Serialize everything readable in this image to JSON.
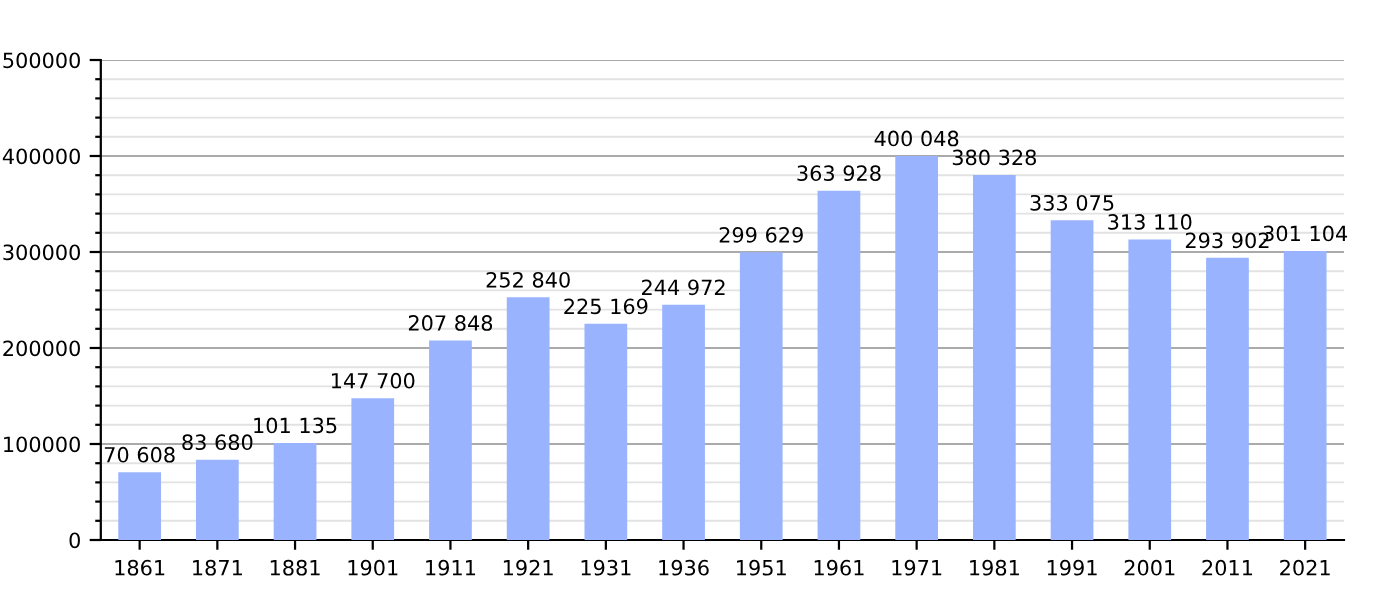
{
  "chart_data": {
    "type": "bar",
    "categories": [
      "1861",
      "1871",
      "1881",
      "1901",
      "1911",
      "1921",
      "1931",
      "1936",
      "1951",
      "1961",
      "1971",
      "1981",
      "1991",
      "2001",
      "2011",
      "2021"
    ],
    "values": [
      70608,
      83680,
      101135,
      147700,
      207848,
      252840,
      225169,
      244972,
      299629,
      363928,
      400048,
      380328,
      333075,
      313110,
      293902,
      301104
    ],
    "value_labels": [
      "70 608",
      "83 680",
      "101 135",
      "147 700",
      "207 848",
      "252 840",
      "225 169",
      "244 972",
      "299 629",
      "363 928",
      "400 048",
      "380 328",
      "333 075",
      "313 110",
      "293 902",
      "301 104"
    ],
    "color": "#99b3ff",
    "ylim": [
      0,
      500000
    ],
    "yticks": [
      0,
      {
        "value": 20000,
        "label": null
      },
      {
        "value": 40000,
        "label": null
      },
      {
        "value": 60000,
        "label": null
      },
      {
        "value": 80000,
        "label": null
      },
      100000,
      {
        "value": 120000,
        "label": null
      },
      {
        "value": 140000,
        "label": null
      },
      {
        "value": 160000,
        "label": null
      },
      {
        "value": 180000,
        "label": null
      },
      200000,
      {
        "value": 220000,
        "label": null
      },
      {
        "value": 240000,
        "label": null
      },
      {
        "value": 260000,
        "label": null
      },
      {
        "value": 280000,
        "label": null
      },
      300000,
      {
        "value": 320000,
        "label": null
      },
      {
        "value": 340000,
        "label": null
      },
      {
        "value": 360000,
        "label": null
      },
      {
        "value": 380000,
        "label": null
      },
      400000,
      {
        "value": 420000,
        "label": null
      },
      {
        "value": 440000,
        "label": null
      },
      {
        "value": 460000,
        "label": null
      },
      {
        "value": 480000,
        "label": null
      },
      500000
    ],
    "grid": "y"
  }
}
